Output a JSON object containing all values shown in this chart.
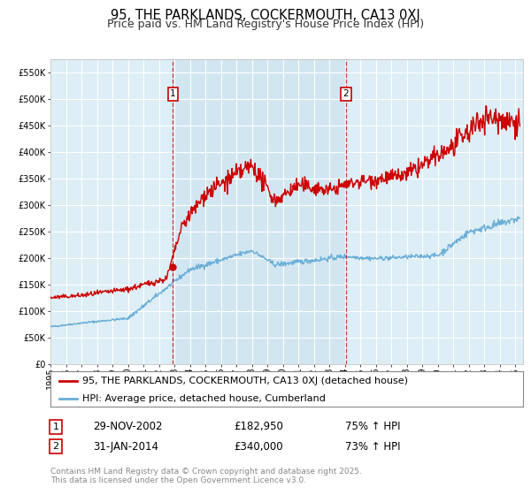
{
  "title": "95, THE PARKLANDS, COCKERMOUTH, CA13 0XJ",
  "subtitle": "Price paid vs. HM Land Registry's House Price Index (HPI)",
  "background_color": "#ffffff",
  "plot_bg_color": "#ddeef6",
  "grid_color": "#ffffff",
  "hpi_color": "#6baed6",
  "price_color": "#cc0000",
  "marker_color": "#cc0000",
  "vline_color": "#cc0000",
  "shade_color": "#c8e0ef",
  "shade_alpha": 0.5,
  "xmin": 1995.0,
  "xmax": 2025.5,
  "ymin": 0,
  "ymax": 575000,
  "yticks": [
    0,
    50000,
    100000,
    150000,
    200000,
    250000,
    300000,
    350000,
    400000,
    450000,
    500000,
    550000
  ],
  "ytick_labels": [
    "£0",
    "£50K",
    "£100K",
    "£150K",
    "£200K",
    "£250K",
    "£300K",
    "£350K",
    "£400K",
    "£450K",
    "£500K",
    "£550K"
  ],
  "xticks": [
    1995,
    1996,
    1997,
    1998,
    1999,
    2000,
    2001,
    2002,
    2003,
    2004,
    2005,
    2006,
    2007,
    2008,
    2009,
    2010,
    2011,
    2012,
    2013,
    2014,
    2015,
    2016,
    2017,
    2018,
    2019,
    2020,
    2021,
    2022,
    2023,
    2024,
    2025
  ],
  "sale1_x": 2002.91,
  "sale1_y": 182950,
  "sale1_label": "1",
  "sale1_date": "29-NOV-2002",
  "sale1_price": "£182,950",
  "sale1_hpi": "75% ↑ HPI",
  "sale2_x": 2014.08,
  "sale2_y": 340000,
  "sale2_label": "2",
  "sale2_date": "31-JAN-2014",
  "sale2_price": "£340,000",
  "sale2_hpi": "73% ↑ HPI",
  "legend_line1": "95, THE PARKLANDS, COCKERMOUTH, CA13 0XJ (detached house)",
  "legend_line2": "HPI: Average price, detached house, Cumberland",
  "footnote1": "Contains HM Land Registry data © Crown copyright and database right 2025.",
  "footnote2": "This data is licensed under the Open Government Licence v3.0.",
  "title_fontsize": 10.5,
  "subtitle_fontsize": 9,
  "tick_fontsize": 7,
  "legend_fontsize": 8,
  "footnote_fontsize": 6.5,
  "table_fontsize": 8.5,
  "label_fontsize": 8
}
